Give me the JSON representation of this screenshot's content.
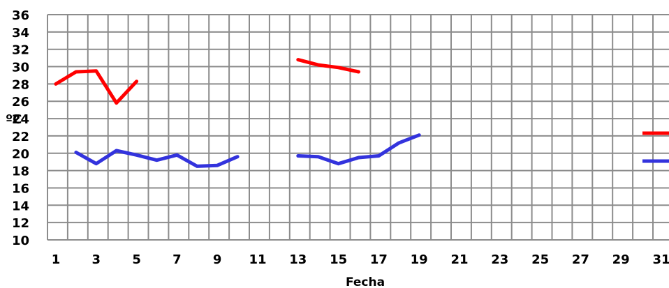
{
  "chart_data": {
    "type": "line",
    "title": "",
    "xlabel": "Fecha",
    "ylabel": "ºC",
    "xlim": [
      1,
      31
    ],
    "ylim": [
      10,
      36
    ],
    "x_ticks": [
      1,
      3,
      5,
      7,
      9,
      11,
      13,
      15,
      17,
      19,
      21,
      23,
      25,
      27,
      29,
      31
    ],
    "y_ticks": [
      10,
      12,
      14,
      16,
      18,
      20,
      22,
      24,
      26,
      28,
      30,
      32,
      34,
      36
    ],
    "grid": true,
    "legend": "right",
    "series": [
      {
        "color": "#ff0000",
        "points": [
          [
            1,
            28.0
          ],
          [
            2,
            29.4
          ],
          [
            3,
            29.5
          ],
          [
            4,
            25.8
          ],
          [
            5,
            28.3
          ],
          [
            13,
            30.8
          ],
          [
            14,
            30.2
          ],
          [
            15,
            29.9
          ],
          [
            16,
            29.4
          ]
        ]
      },
      {
        "color": "#3333dd",
        "points": [
          [
            2,
            20.1
          ],
          [
            3,
            18.8
          ],
          [
            4,
            20.3
          ],
          [
            5,
            19.8
          ],
          [
            6,
            19.2
          ],
          [
            7,
            19.8
          ],
          [
            8,
            18.5
          ],
          [
            9,
            18.6
          ],
          [
            10,
            19.6
          ],
          [
            13,
            19.7
          ],
          [
            14,
            19.6
          ],
          [
            15,
            18.8
          ],
          [
            16,
            19.5
          ],
          [
            17,
            19.7
          ],
          [
            18,
            21.2
          ],
          [
            19,
            22.1
          ]
        ]
      }
    ]
  }
}
